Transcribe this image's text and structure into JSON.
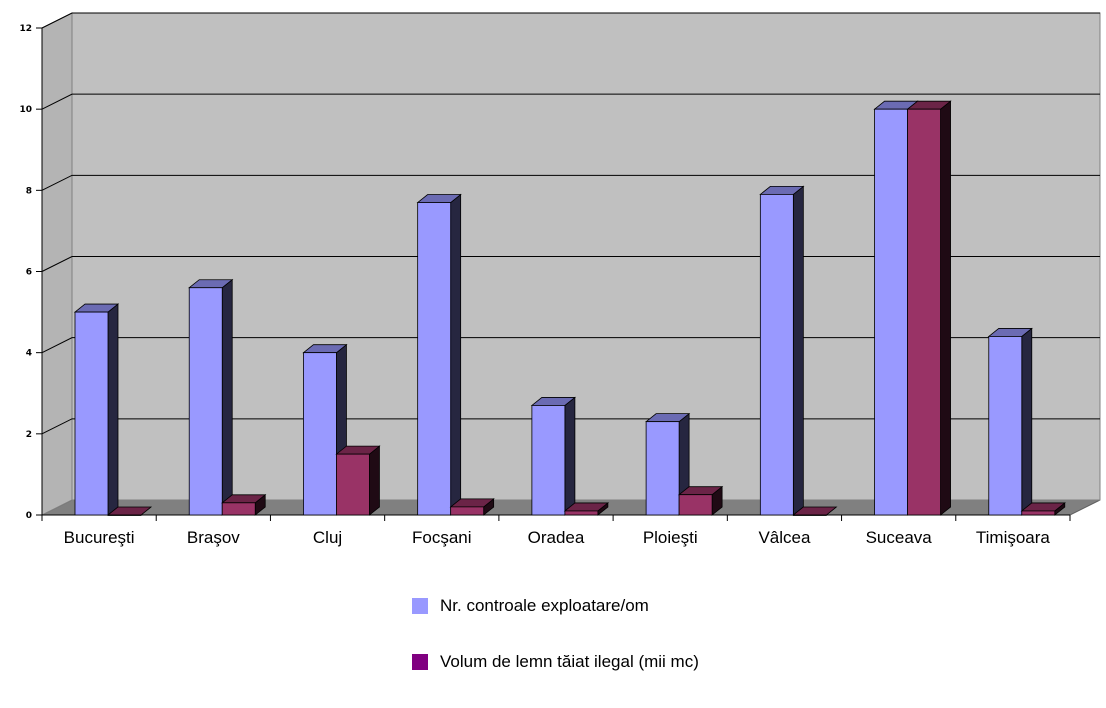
{
  "chart_data": {
    "type": "bar",
    "title": "",
    "xlabel": "",
    "ylabel": "",
    "ylim": [
      0,
      12
    ],
    "yticks": [
      0,
      2,
      4,
      6,
      8,
      10,
      12
    ],
    "grid": true,
    "legend_position": "bottom",
    "categories": [
      "Bucureşti",
      "Braşov",
      "Cluj",
      "Focşani",
      "Oradea",
      "Ploieşti",
      "Vâlcea",
      "Suceava",
      "Timişoara"
    ],
    "series": [
      {
        "name": "Nr. controale exploatare/om",
        "values": [
          5.0,
          5.6,
          4.0,
          7.7,
          2.7,
          2.3,
          7.9,
          10.0,
          4.4
        ],
        "color": "#9999ff"
      },
      {
        "name": "Volum de lemn tăiat ilegal (mii mc)",
        "values": [
          0.0,
          0.3,
          1.5,
          0.2,
          0.1,
          0.5,
          0.0,
          10.0,
          0.1
        ],
        "color": "#993366"
      }
    ]
  },
  "legend": {
    "items": [
      {
        "label": "Nr. controale exploatare/om",
        "color": "#9999ff"
      },
      {
        "label": "Volum de lemn tăiat ilegal (mii mc)",
        "color": "#800080"
      }
    ]
  }
}
